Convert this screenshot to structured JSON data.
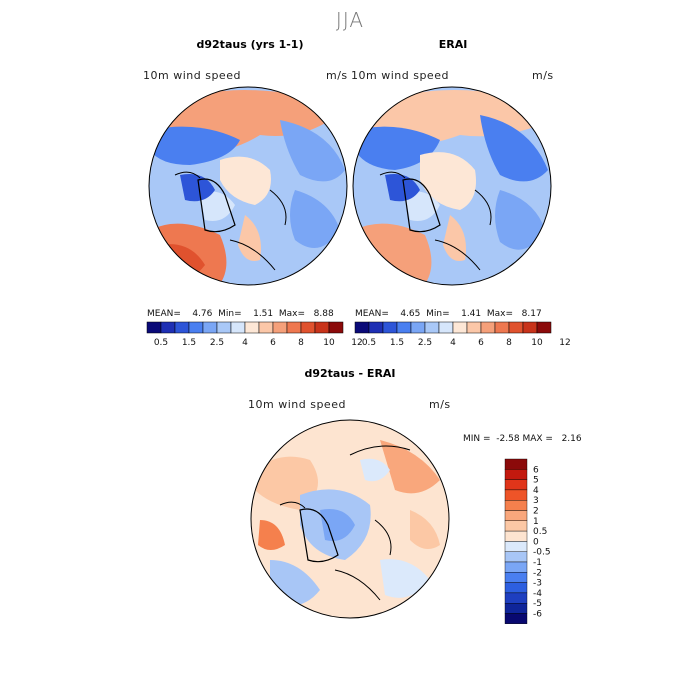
{
  "figure": {
    "title": "JJA"
  },
  "panels": [
    {
      "title": "d92taus (yrs 1-1)",
      "left_label": "10m wind speed",
      "right_label": "m/s",
      "stats": {
        "mean_label": "MEAN=",
        "mean": "4.76",
        "min_label": "Min=",
        "min": "1.51",
        "max_label": "Max=",
        "max": "8.88"
      }
    },
    {
      "title": "ERAI",
      "left_label": "10m wind speed",
      "right_label": "m/s",
      "stats": {
        "mean_label": "MEAN=",
        "mean": "4.65",
        "min_label": "Min=",
        "min": "1.41",
        "max_label": "Max=",
        "max": "8.17"
      }
    },
    {
      "title": "d92taus - ERAI",
      "left_label": "10m wind speed",
      "right_label": "m/s",
      "stats": {
        "min_label": "MIN =",
        "min": "-2.58",
        "max_label": "MAX =",
        "max": "2.16"
      }
    }
  ],
  "colorbar_horizontal": {
    "ticks": [
      "0.5",
      "1.5",
      "2.5",
      "4",
      "6",
      "8",
      "10",
      "12"
    ],
    "colors": [
      "#0a0a78",
      "#1e2fb4",
      "#2d55d8",
      "#4a7ff0",
      "#7aa6f5",
      "#a9c8f7",
      "#d6e6fb",
      "#fde7d6",
      "#fbc7a8",
      "#f5a07a",
      "#ee7850",
      "#e0522e",
      "#c8331a",
      "#8b0a0a"
    ]
  },
  "colorbar_vertical": {
    "ticks": [
      "6",
      "5",
      "4",
      "3",
      "2",
      "1",
      "0.5",
      "0",
      "-0.5",
      "-1",
      "-2",
      "-3",
      "-4",
      "-5",
      "-6"
    ],
    "colors": [
      "#8b0a0a",
      "#c3190e",
      "#e0351a",
      "#ee5428",
      "#f5804d",
      "#f9a77c",
      "#fcc8a5",
      "#fde4d0",
      "#dbe9fb",
      "#a8c6f6",
      "#7aa6f5",
      "#4a7ff0",
      "#2d5fe0",
      "#1e3fc0",
      "#0f259a",
      "#080870"
    ]
  }
}
